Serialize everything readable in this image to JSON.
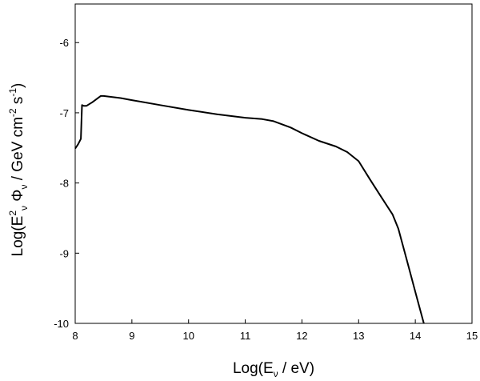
{
  "chart_data": {
    "type": "line",
    "title": "",
    "xlabel": {
      "prefix": "Log(E",
      "sub": "ν",
      "suffix": " / eV)"
    },
    "ylabel": {
      "p1": "Log(E",
      "sup1": "2",
      "sub1": "ν",
      "p2": " Φ",
      "sub2": "ν",
      "p3": " / GeV cm",
      "sup2": "-2",
      "p4": " s",
      "sup3": "-1",
      "p5": ")"
    },
    "xlim": [
      8,
      15
    ],
    "ylim": [
      -10,
      -5.45
    ],
    "xticks": [
      8,
      9,
      10,
      11,
      12,
      13,
      14,
      15
    ],
    "yticks": [
      -10,
      -9,
      -8,
      -7,
      -6
    ],
    "grid": false,
    "legend": "none",
    "line_color": "#000000",
    "series": [
      {
        "x": [
          8.0,
          8.05,
          8.1,
          8.12,
          8.15,
          8.2,
          8.3,
          8.45,
          8.5,
          8.6,
          8.8,
          9.0,
          9.5,
          10.0,
          10.5,
          11.0,
          11.3,
          11.5,
          11.8,
          12.0,
          12.3,
          12.6,
          12.8,
          13.0,
          13.2,
          13.4,
          13.6,
          13.7,
          13.8,
          13.9,
          14.0,
          14.1,
          14.15
        ],
        "y": [
          -7.51,
          -7.45,
          -7.37,
          -6.89,
          -6.9,
          -6.9,
          -6.85,
          -6.76,
          -6.76,
          -6.77,
          -6.79,
          -6.82,
          -6.89,
          -6.96,
          -7.02,
          -7.07,
          -7.09,
          -7.12,
          -7.21,
          -7.29,
          -7.4,
          -7.48,
          -7.56,
          -7.69,
          -7.95,
          -8.2,
          -8.45,
          -8.65,
          -8.95,
          -9.25,
          -9.55,
          -9.85,
          -10.0
        ]
      }
    ]
  }
}
